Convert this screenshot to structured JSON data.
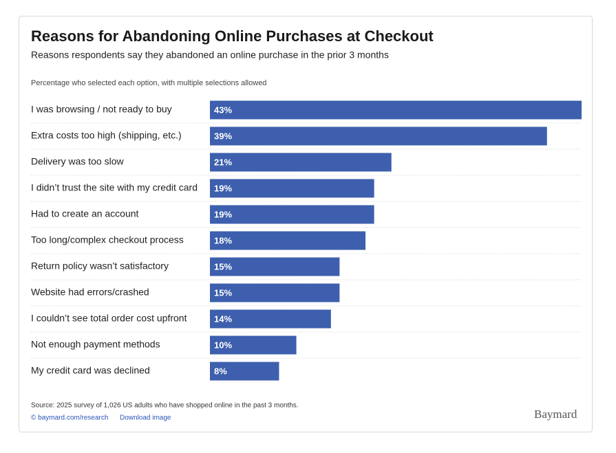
{
  "chart_data": {
    "type": "bar",
    "orientation": "horizontal",
    "title": "Reasons for Abandoning Online Purchases at Checkout",
    "subtitle": "Reasons respondents say they abandoned an online purchase in the prior 3 months",
    "note": "Percentage who selected each option, with multiple selections allowed",
    "categories": [
      "I was browsing / not ready to buy",
      "Extra costs too high (shipping, etc.)",
      "Delivery was too slow",
      "I didn’t trust the site with my credit card",
      "Had to create an account",
      "Too long/complex checkout process",
      "Return policy wasn’t satisfactory",
      "Website had errors/crashed",
      "I couldn’t see total order cost upfront",
      "Not enough payment methods",
      "My credit card was declined"
    ],
    "values": [
      43,
      39,
      21,
      19,
      19,
      18,
      15,
      15,
      14,
      10,
      8
    ],
    "value_labels": [
      "43%",
      "39%",
      "21%",
      "19%",
      "19%",
      "18%",
      "15%",
      "15%",
      "14%",
      "10%",
      "8%"
    ],
    "color": "#3d5fad",
    "source": "Source: 2025 survey of 1,026 US adults who have shopped online in the past 3 months.",
    "credit_link": "© baymard.com/research",
    "download_link": "Download image",
    "logo": "Baymard"
  }
}
